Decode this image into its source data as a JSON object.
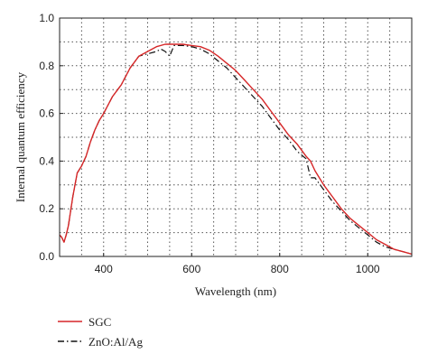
{
  "chart_data": {
    "type": "line",
    "xlabel": "Wavelength (nm)",
    "ylabel": "Internal quantum efficiency",
    "xlim": [
      300,
      1100
    ],
    "ylim": [
      0,
      1.0
    ],
    "x_ticks": [
      400,
      600,
      800,
      1000
    ],
    "x_tick_labels": [
      "400",
      "600",
      "800",
      "1000"
    ],
    "y_ticks": [
      0,
      0.2,
      0.4,
      0.6,
      0.8,
      1.0
    ],
    "y_tick_labels": [
      "0.0",
      "0.2",
      "0.4",
      "0.6",
      "0.8",
      "1.0"
    ],
    "grid": true,
    "grid_style": "dotted",
    "legend_position": "below-left",
    "series": [
      {
        "name": "SGC",
        "color": "#d62728",
        "style": "solid",
        "x": [
          300,
          305,
          310,
          315,
          320,
          330,
          340,
          350,
          360,
          370,
          380,
          390,
          400,
          420,
          440,
          460,
          480,
          500,
          520,
          540,
          560,
          580,
          600,
          620,
          640,
          660,
          680,
          700,
          720,
          740,
          760,
          780,
          800,
          820,
          840,
          860,
          870,
          880,
          900,
          920,
          940,
          960,
          980,
          1000,
          1020,
          1040,
          1060,
          1080,
          1100
        ],
        "y": [
          0.09,
          0.08,
          0.06,
          0.09,
          0.13,
          0.25,
          0.35,
          0.38,
          0.42,
          0.48,
          0.53,
          0.57,
          0.6,
          0.67,
          0.72,
          0.79,
          0.84,
          0.86,
          0.88,
          0.89,
          0.89,
          0.89,
          0.885,
          0.88,
          0.865,
          0.84,
          0.81,
          0.78,
          0.74,
          0.7,
          0.66,
          0.61,
          0.56,
          0.51,
          0.47,
          0.42,
          0.4,
          0.36,
          0.3,
          0.25,
          0.2,
          0.16,
          0.13,
          0.1,
          0.07,
          0.05,
          0.03,
          0.02,
          0.01
        ]
      },
      {
        "name": "ZnO:Al/Ag",
        "color": "#111111",
        "style": "dash-dot",
        "x": [
          300,
          305,
          310,
          315,
          320,
          330,
          340,
          350,
          360,
          370,
          380,
          390,
          400,
          420,
          440,
          460,
          480,
          500,
          520,
          530,
          540,
          550,
          560,
          580,
          600,
          620,
          640,
          660,
          680,
          700,
          720,
          740,
          760,
          780,
          800,
          820,
          840,
          860,
          870,
          880,
          900,
          920,
          940,
          960,
          980,
          1000,
          1020,
          1040,
          1060,
          1080,
          1100
        ],
        "y": [
          0.09,
          0.08,
          0.06,
          0.09,
          0.13,
          0.25,
          0.35,
          0.38,
          0.42,
          0.48,
          0.53,
          0.57,
          0.6,
          0.67,
          0.72,
          0.79,
          0.84,
          0.85,
          0.86,
          0.87,
          0.86,
          0.84,
          0.885,
          0.885,
          0.88,
          0.87,
          0.85,
          0.82,
          0.79,
          0.75,
          0.71,
          0.67,
          0.63,
          0.58,
          0.53,
          0.49,
          0.44,
          0.41,
          0.33,
          0.33,
          0.28,
          0.23,
          0.19,
          0.15,
          0.12,
          0.09,
          0.06,
          0.04,
          0.03,
          0.02,
          0.01
        ]
      }
    ]
  }
}
